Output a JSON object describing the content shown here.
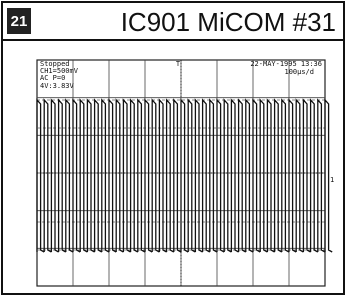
{
  "figure": {
    "number": "21",
    "title": "IC901 MiCOM #31",
    "scope": {
      "status": "Stopped",
      "channel": "CH1=500mV",
      "coupling": "AC P=0",
      "measure": "4V:3.83V",
      "timestamp": "22-MAY-1995 13:36",
      "timebase": "100μs/d",
      "trigger_marker": "T",
      "channel_marker": "1"
    }
  }
}
